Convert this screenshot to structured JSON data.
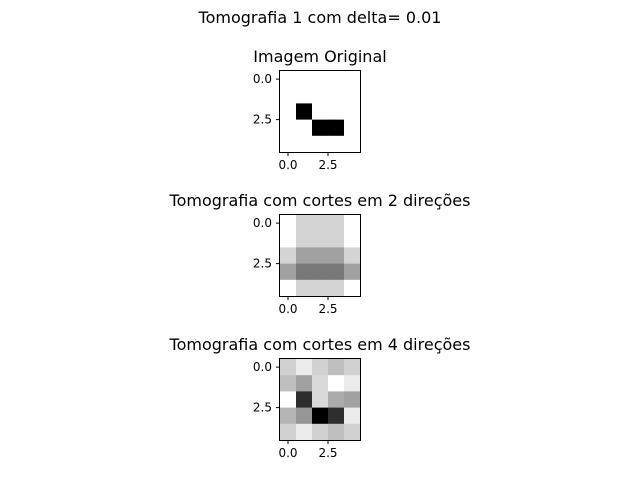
{
  "figure_title": "Tomografia 1 com delta= 0.01",
  "chart_data": [
    {
      "type": "heatmap",
      "title": "Imagem Original",
      "xlabel": "",
      "ylabel": "",
      "xticks": [
        "0.0",
        "2.5"
      ],
      "yticks": [
        "0.0",
        "2.5"
      ],
      "colormap": "gray",
      "grid": false,
      "values": [
        [
          0,
          0,
          0,
          0,
          0
        ],
        [
          0,
          0,
          0,
          0,
          0
        ],
        [
          0,
          1,
          0,
          0,
          0
        ],
        [
          0,
          0,
          1,
          1,
          0
        ],
        [
          0,
          0,
          0,
          0,
          0
        ]
      ]
    },
    {
      "type": "heatmap",
      "title": "Tomografia com cortes em 2 direções",
      "xlabel": "",
      "ylabel": "",
      "xticks": [
        "0.0",
        "2.5"
      ],
      "yticks": [
        "0.0",
        "2.5"
      ],
      "colormap": "gray",
      "grid": false,
      "values": [
        [
          0.0,
          0.17,
          0.17,
          0.17,
          0.0
        ],
        [
          0.0,
          0.17,
          0.17,
          0.17,
          0.0
        ],
        [
          0.17,
          0.37,
          0.37,
          0.37,
          0.17
        ],
        [
          0.37,
          0.53,
          0.53,
          0.53,
          0.37
        ],
        [
          0.0,
          0.17,
          0.17,
          0.17,
          0.0
        ]
      ]
    },
    {
      "type": "heatmap",
      "title": "Tomografia com cortes em 4 direções",
      "xlabel": "",
      "ylabel": "",
      "xticks": [
        "0.0",
        "2.5"
      ],
      "yticks": [
        "0.0",
        "2.5"
      ],
      "colormap": "gray",
      "grid": false,
      "values": [
        [
          0.18,
          0.08,
          0.18,
          0.25,
          0.18
        ],
        [
          0.25,
          0.37,
          0.15,
          0.0,
          0.08
        ],
        [
          0.0,
          0.82,
          0.15,
          0.33,
          0.37
        ],
        [
          0.29,
          0.41,
          1.0,
          0.82,
          0.08
        ],
        [
          0.18,
          0.08,
          0.18,
          0.25,
          0.18
        ]
      ]
    }
  ]
}
